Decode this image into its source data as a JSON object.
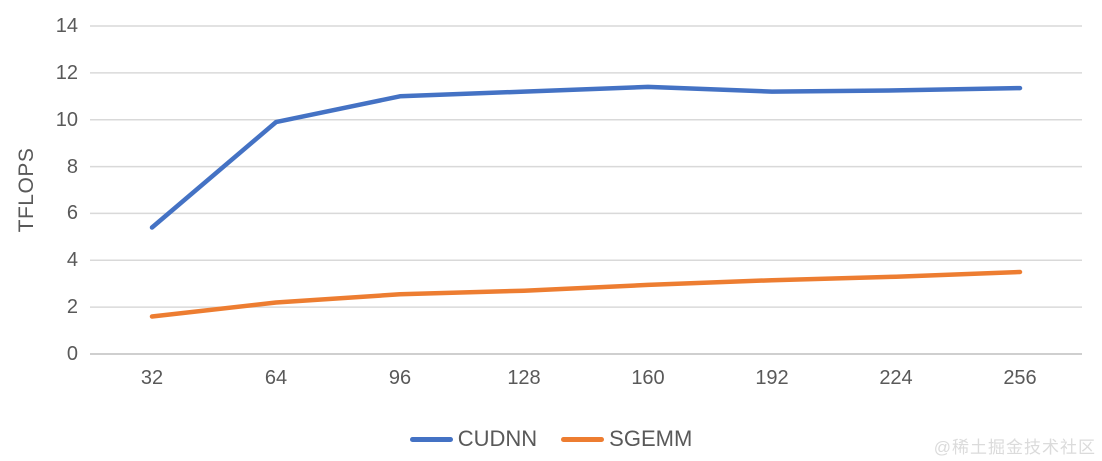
{
  "watermark": "@稀土掘金技术社区",
  "colors": {
    "background": "#ffffff",
    "gridline": "#d9d9d9",
    "axis_line": "#bfbfbf",
    "tick_text": "#595959",
    "watermark_text": "#dbdbdb",
    "cudnn": "#4472c4",
    "sgemm": "#ed7d31"
  },
  "chart_data": {
    "type": "line",
    "title": "",
    "xlabel": "",
    "ylabel": "TFLOPS",
    "categories": [
      32,
      64,
      96,
      128,
      160,
      192,
      224,
      256
    ],
    "series": [
      {
        "name": "CUDNN",
        "color": "#4472c4",
        "values": [
          5.4,
          9.9,
          11.0,
          11.2,
          11.4,
          11.2,
          11.25,
          11.35
        ]
      },
      {
        "name": "SGEMM",
        "color": "#ed7d31",
        "values": [
          1.6,
          2.2,
          2.55,
          2.7,
          2.95,
          3.15,
          3.3,
          3.5
        ]
      }
    ],
    "ylim": [
      0,
      14
    ],
    "ytick_step": 2,
    "grid": true,
    "legend_position": "bottom"
  }
}
